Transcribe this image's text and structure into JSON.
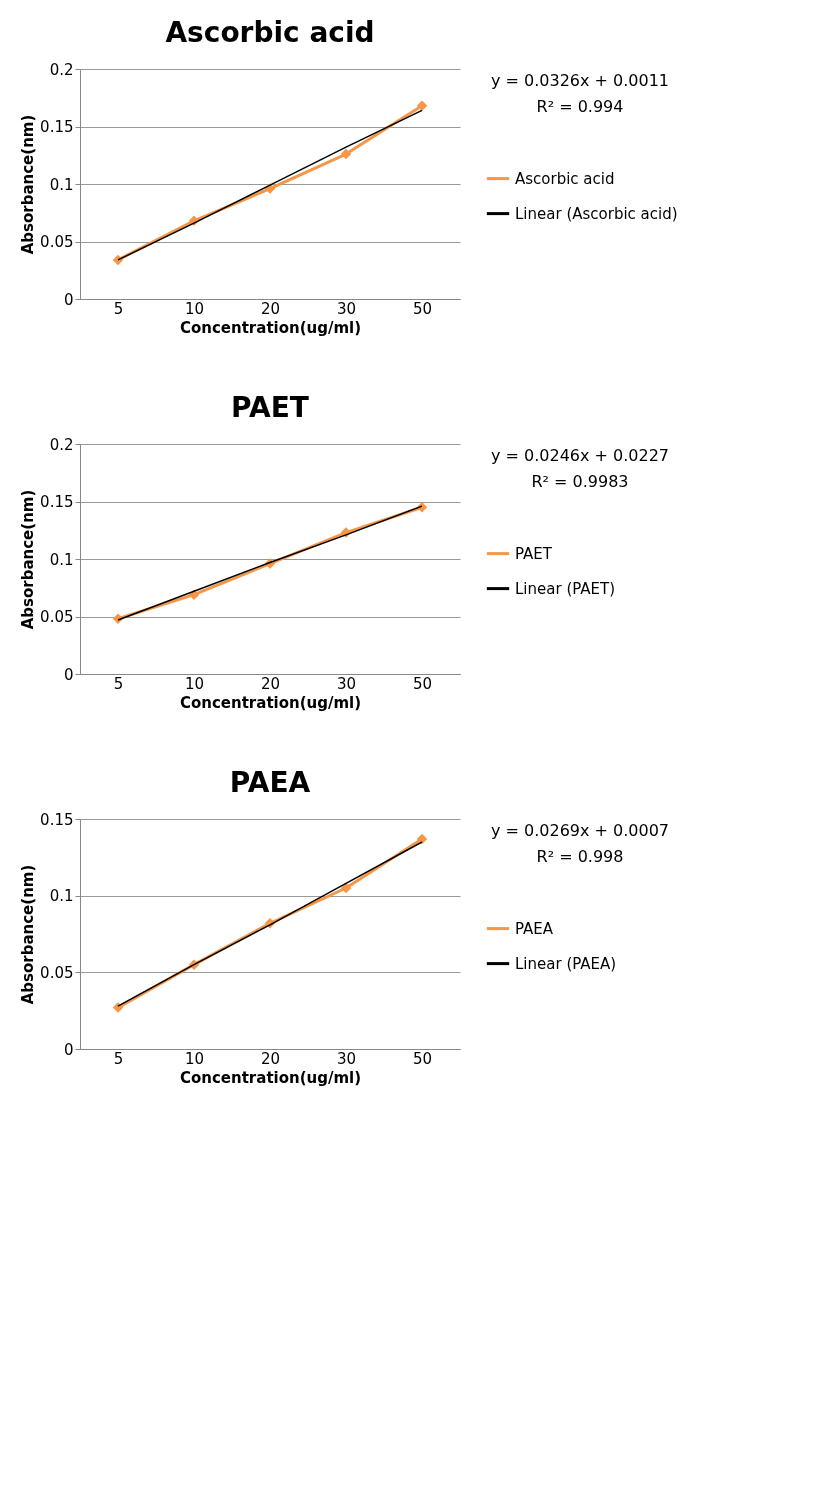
{
  "chart_data": [
    {
      "type": "line",
      "title": "Ascorbic acid",
      "xlabel": "Concentration(ug/ml)",
      "ylabel": "Absorbance(nm)",
      "categories": [
        "5",
        "10",
        "20",
        "30",
        "50"
      ],
      "ylim": [
        0,
        0.2
      ],
      "yticks": [
        0,
        0.05,
        0.1,
        0.15,
        0.2
      ],
      "grid": "y",
      "legend": "right",
      "annotations": [
        "y = 0.0326x + 0.0011",
        "R² = 0.994"
      ],
      "series": [
        {
          "name": "Ascorbic acid",
          "color": "#f79646",
          "marker": "diamond",
          "values": [
            0.034,
            0.068,
            0.096,
            0.126,
            0.168
          ]
        },
        {
          "name": "Linear (Ascorbic acid)",
          "color": "#000000",
          "type": "line",
          "marker": "none",
          "values": [
            0.034,
            0.066,
            0.099,
            0.132,
            0.164
          ]
        }
      ]
    },
    {
      "type": "line",
      "title": "PAET",
      "xlabel": "Concentration(ug/ml)",
      "ylabel": "Absorbance(nm)",
      "categories": [
        "5",
        "10",
        "20",
        "30",
        "50"
      ],
      "ylim": [
        0,
        0.2
      ],
      "yticks": [
        0,
        0.05,
        0.1,
        0.15,
        0.2
      ],
      "grid": "y",
      "legend": "right",
      "annotations": [
        "y = 0.0246x + 0.0227",
        "R² = 0.9983"
      ],
      "series": [
        {
          "name": "PAET",
          "color": "#f79646",
          "marker": "diamond",
          "values": [
            0.048,
            0.069,
            0.096,
            0.123,
            0.145
          ]
        },
        {
          "name": "Linear (PAET)",
          "color": "#000000",
          "type": "line",
          "marker": "none",
          "values": [
            0.047,
            0.072,
            0.097,
            0.121,
            0.146
          ]
        }
      ]
    },
    {
      "type": "line",
      "title": "PAEA",
      "xlabel": "Concentration(ug/ml)",
      "ylabel": "Absorbance(nm)",
      "categories": [
        "5",
        "10",
        "20",
        "30",
        "50"
      ],
      "ylim": [
        0,
        0.15
      ],
      "yticks": [
        0,
        0.05,
        0.1,
        0.15
      ],
      "grid": "y",
      "legend": "right",
      "annotations": [
        "y = 0.0269x + 0.0007",
        "R² = 0.998"
      ],
      "series": [
        {
          "name": "PAEA",
          "color": "#f79646",
          "marker": "diamond",
          "values": [
            0.027,
            0.055,
            0.082,
            0.105,
            0.137
          ]
        },
        {
          "name": "Linear (PAEA)",
          "color": "#000000",
          "type": "line",
          "marker": "none",
          "values": [
            0.028,
            0.055,
            0.081,
            0.108,
            0.135
          ]
        }
      ]
    }
  ]
}
